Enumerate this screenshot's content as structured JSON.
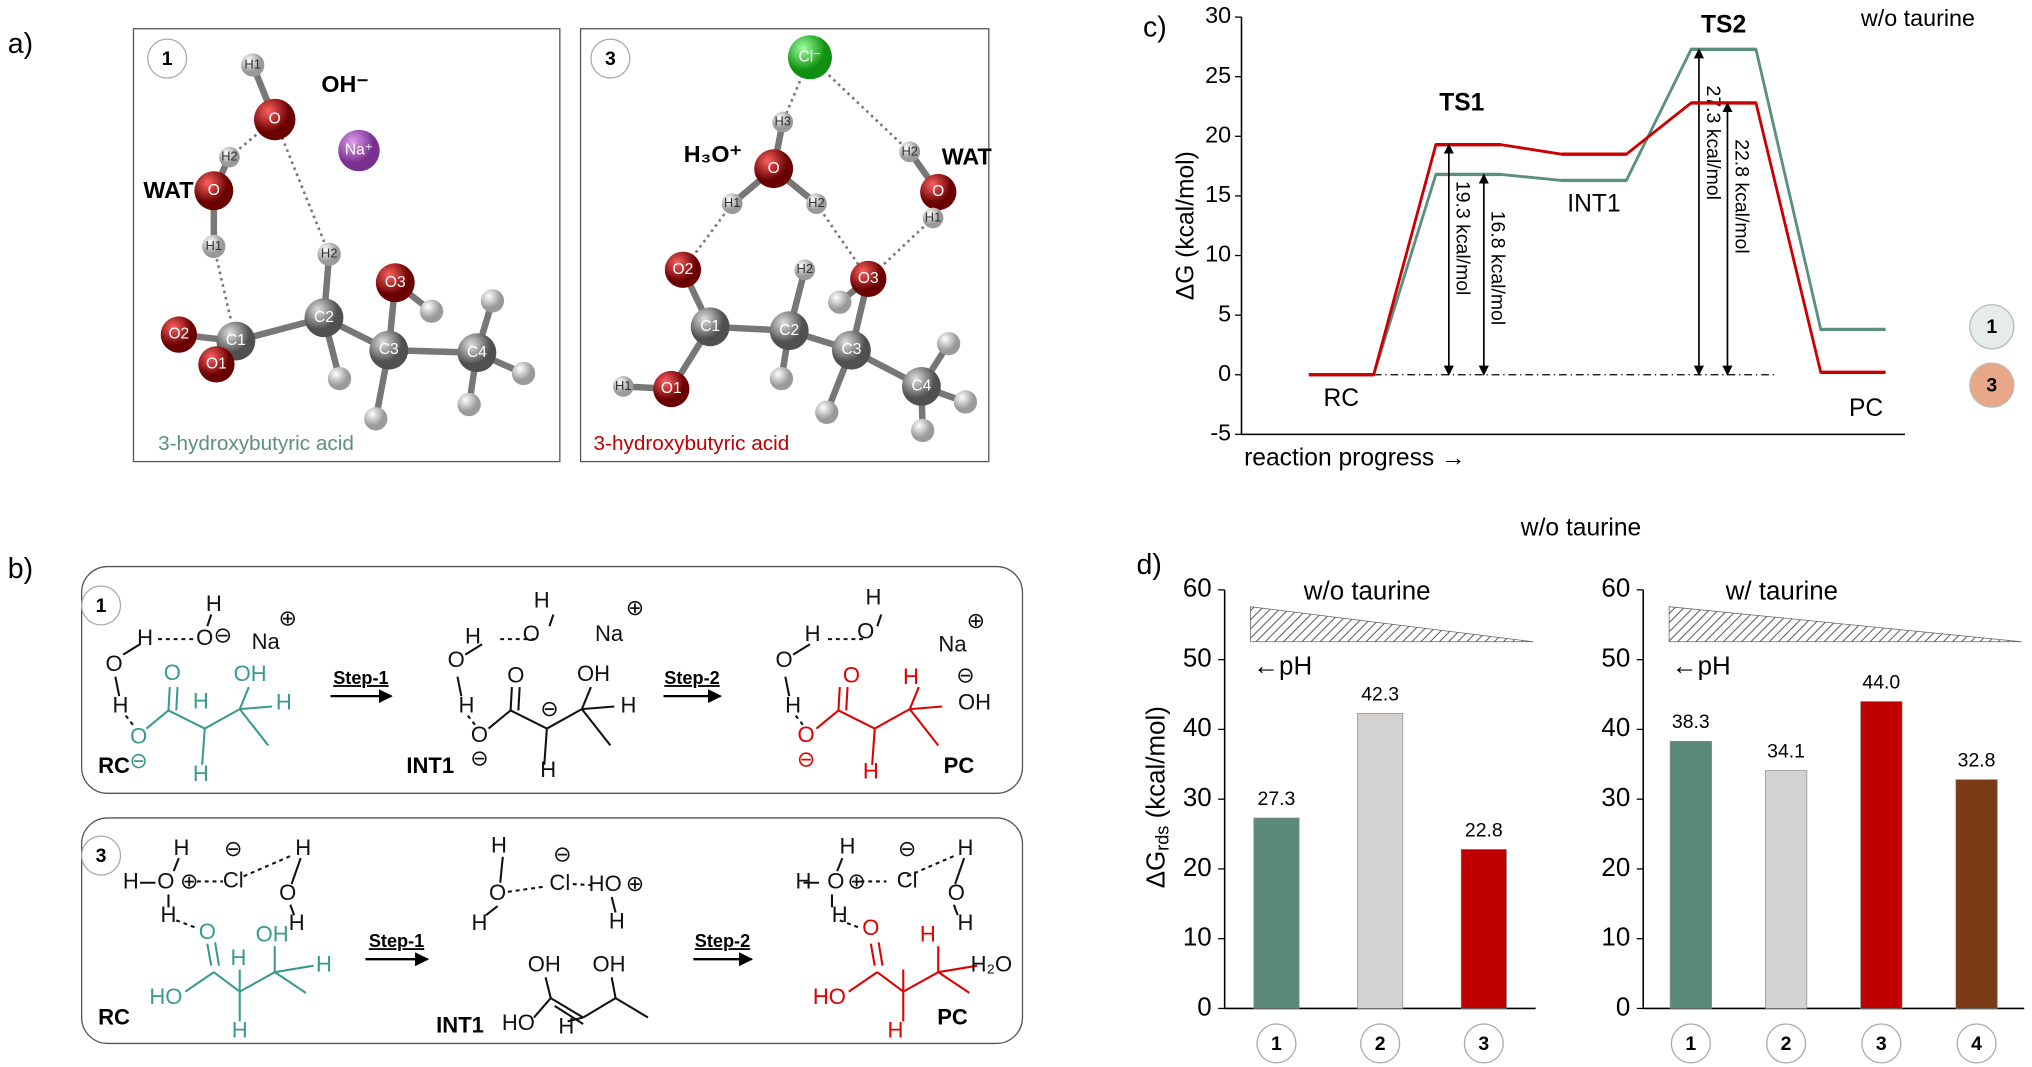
{
  "panel_labels": {
    "a": "a)",
    "b": "b)",
    "c": "c)",
    "d": "d)"
  },
  "panel_a": [
    {
      "number": "1",
      "caption": "3-hydroxybutyric acid",
      "notes": [
        "OH⁻",
        "WAT"
      ],
      "atoms": [
        "H1",
        "O",
        "Na⁺",
        "H2",
        "O",
        "H1",
        "H2",
        "O3",
        "O2",
        "C1",
        "O1",
        "C2",
        "C3",
        "C4"
      ]
    },
    {
      "number": "3",
      "caption": "3-hydroxybutyric acid",
      "notes": [
        "H₃O⁺",
        "WAT"
      ],
      "atoms": [
        "Cl⁻",
        "H3",
        "O",
        "H1",
        "H2",
        "H2",
        "O",
        "H1",
        "O2",
        "H2",
        "O3",
        "C1",
        "C2",
        "C3",
        "C4",
        "O1",
        "H1"
      ]
    }
  ],
  "panel_b": [
    {
      "number": "1",
      "steps": [
        "Step-1",
        "Step-2"
      ],
      "states": [
        "RC",
        "INT1",
        "PC"
      ],
      "texts": [
        "H",
        "H",
        "O",
        "⊖",
        "Na",
        "⊕",
        "O",
        "H",
        "O",
        "⊖",
        "O",
        "OH",
        "H",
        "H",
        "H",
        "H",
        "H",
        "O",
        "Na",
        "⊕",
        "O",
        "H",
        "O",
        "⊖",
        "O",
        "OH",
        "⊖",
        "H",
        "H",
        "H",
        "H",
        "O",
        "Na",
        "⊕",
        "⊖",
        "OH",
        "O",
        "H",
        "O",
        "O",
        "⊖",
        "H",
        "H"
      ]
    },
    {
      "number": "3",
      "steps": [
        "Step-1",
        "Step-2"
      ],
      "states": [
        "RC",
        "INT1",
        "PC"
      ],
      "texts": [
        "H",
        "H",
        "O",
        "⊕",
        "⊖",
        "Cl",
        "H",
        "O",
        "H",
        "H",
        "O",
        "HO",
        "OH",
        "H",
        "H",
        "H",
        "H",
        "⊖",
        "Cl",
        "O",
        "H",
        "HO",
        "⊕",
        "H",
        "OH",
        "OH",
        "HO",
        "H",
        "H",
        "H",
        "O",
        "⊕",
        "⊖",
        "Cl",
        "H",
        "O",
        "H",
        "H",
        "O",
        "HO",
        "H",
        "H",
        "H₂O"
      ]
    }
  ],
  "panel_d_heading": "w/o taurine",
  "chart_data": [
    {
      "type": "profile",
      "ylabel": "ΔG (kcal/mol)",
      "xlabel": "reaction progress →",
      "note": "w/o taurine",
      "categories": [
        "RC",
        "TS1",
        "INT1",
        "TS2",
        "PC"
      ],
      "series": [
        {
          "name": "1",
          "color": "#5b8f80",
          "marker_color": "#e6ecea",
          "values": [
            0,
            16.8,
            16.3,
            27.3,
            3.8
          ],
          "value_labels": [
            null,
            "16.8 kcal/mol",
            null,
            "27.3 kcal/mol",
            null
          ]
        },
        {
          "name": "3",
          "color": "#cc0000",
          "marker_color": "#e8a888",
          "values": [
            0,
            19.3,
            18.5,
            22.8,
            0.2
          ],
          "value_labels": [
            null,
            "19.3 kcal/mol",
            null,
            "22.8 kcal/mol",
            null
          ]
        }
      ],
      "ylim": [
        -5,
        30
      ],
      "yticks": [
        -5,
        0,
        5,
        10,
        15,
        20,
        25,
        30
      ]
    },
    {
      "type": "bar",
      "title": "w/o taurine",
      "annotation": "←pH",
      "ylabel": {
        "main": "ΔG",
        "sub": "rds",
        "unit": " (kcal/mol)"
      },
      "categories": [
        "1",
        "2",
        "3"
      ],
      "values": [
        27.3,
        42.3,
        22.8
      ],
      "colors": [
        "#5b8a7a",
        "#d4d2d0",
        "#c00000"
      ],
      "ylim": [
        0,
        60
      ],
      "yticks": [
        0,
        10,
        20,
        30,
        40,
        50,
        60
      ]
    },
    {
      "type": "bar",
      "title": "w/ taurine",
      "annotation": "←pH",
      "categories": [
        "1",
        "2",
        "3",
        "4"
      ],
      "values": [
        38.3,
        34.1,
        44,
        32.8
      ],
      "value_labels": [
        "38.3",
        "34.1",
        "44.0",
        "32.8"
      ],
      "colors": [
        "#5b8a7a",
        "#d4d2d0",
        "#c00000",
        "#7b3a16"
      ],
      "ylim": [
        0,
        60
      ],
      "yticks": [
        0,
        10,
        20,
        30,
        40,
        50,
        60
      ]
    }
  ]
}
